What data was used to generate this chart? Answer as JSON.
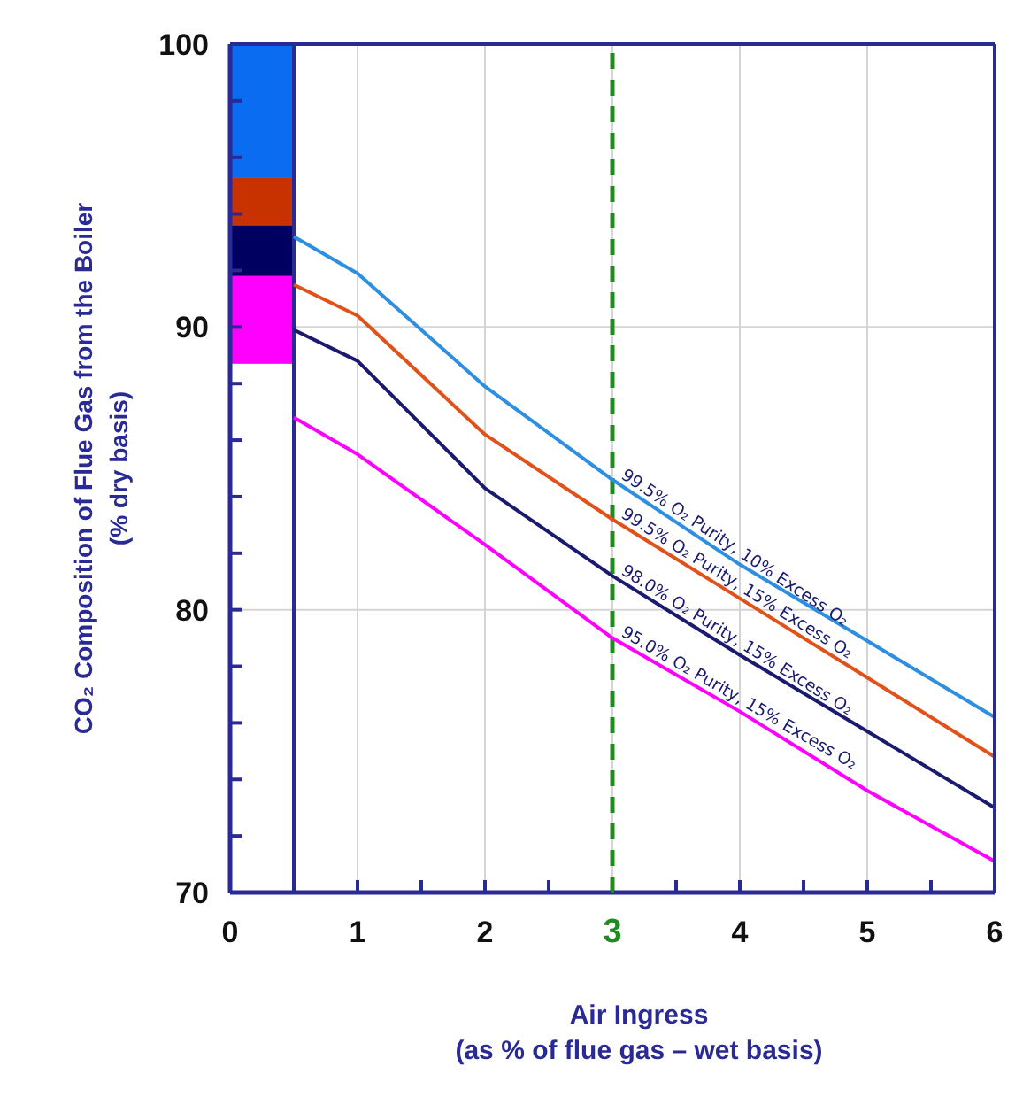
{
  "chart_data": {
    "type": "line",
    "xlabel": "Air Ingress\n(as % of flue gas – wet basis)",
    "ylabel": "CO₂ Composition of Flue Gas from the Boiler\n(% dry basis)",
    "xlim": [
      0,
      6
    ],
    "xticks": [
      0,
      {
        "value": 0.5,
        "label": null
      },
      1,
      {
        "value": 1.5,
        "label": null
      },
      2,
      {
        "value": 2.5,
        "label": null
      },
      3,
      {
        "value": 3.5,
        "label": null
      },
      4,
      {
        "value": 4.5,
        "label": null
      },
      5,
      {
        "value": 5.5,
        "label": null
      },
      6
    ],
    "ylim": [
      70,
      100
    ],
    "yticks": [
      70,
      {
        "value": 72,
        "label": null
      },
      {
        "value": 74,
        "label": null
      },
      {
        "value": 76,
        "label": null
      },
      {
        "value": 78,
        "label": null
      },
      80,
      {
        "value": 82,
        "label": null
      },
      {
        "value": 84,
        "label": null
      },
      {
        "value": 86,
        "label": null
      },
      {
        "value": 88,
        "label": null
      },
      90,
      {
        "value": 92,
        "label": null
      },
      {
        "value": 94,
        "label": null
      },
      {
        "value": 96,
        "label": null
      },
      {
        "value": 98,
        "label": null
      },
      100
    ],
    "grid": true,
    "ref_lines": [
      {
        "axis": "x",
        "value": 3,
        "color": "#1e8c1e",
        "line_style": "dashed"
      },
      {
        "axis": "x",
        "value": 0.5,
        "color": "#2a2a96",
        "line_style": "solid"
      }
    ],
    "series": [
      {
        "type": "bar",
        "x": [
          0.25
        ],
        "base": [
          95.3
        ],
        "values": [
          4.7
        ],
        "color": "#0a6cf0"
      },
      {
        "type": "bar",
        "x": [
          0.25
        ],
        "base": [
          93.6
        ],
        "values": [
          1.7
        ],
        "color": "#c83200"
      },
      {
        "type": "bar",
        "x": [
          0.25
        ],
        "base": [
          91.8
        ],
        "values": [
          1.8
        ],
        "color": "#000060"
      },
      {
        "type": "bar",
        "x": [
          0.25
        ],
        "base": [
          88.7
        ],
        "values": [
          3.1
        ],
        "color": "#ff00ff"
      },
      {
        "name": "99.5% O₂ Purity, 10% Excess O₂",
        "color": "#2e8fe0",
        "x": [
          0.5,
          1,
          2,
          3,
          4,
          5,
          6
        ],
        "values": [
          93.2,
          91.9,
          87.9,
          84.6,
          81.6,
          78.9,
          76.2
        ]
      },
      {
        "name": "99.5% O₂ Purity, 15% Excess O₂",
        "color": "#e0521a",
        "x": [
          0.5,
          1,
          2,
          3,
          4,
          5,
          6
        ],
        "values": [
          91.5,
          90.4,
          86.2,
          83.2,
          80.4,
          77.6,
          74.8
        ]
      },
      {
        "name": "98.0% O₂ Purity, 15% Excess O₂",
        "color": "#1a1a6e",
        "x": [
          0.5,
          1,
          2,
          3,
          4,
          5,
          6
        ],
        "values": [
          89.9,
          88.8,
          84.3,
          81.2,
          78.4,
          75.7,
          73.0
        ]
      },
      {
        "name": "95.0% O₂ Purity, 15% Excess O₂",
        "color": "#ff00ff",
        "x": [
          0.5,
          1,
          2,
          3,
          4,
          5,
          6
        ],
        "values": [
          86.8,
          85.5,
          82.3,
          79.0,
          76.4,
          73.6,
          71.1
        ]
      }
    ]
  }
}
